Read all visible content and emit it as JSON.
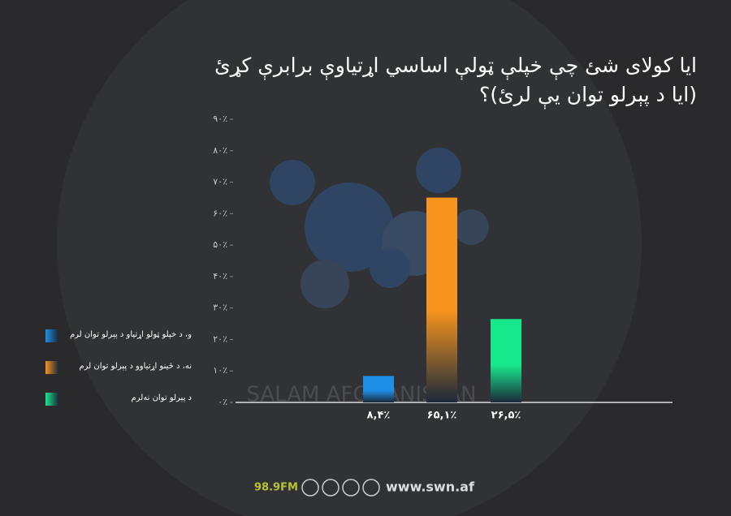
{
  "chart_data": {
    "type": "bar",
    "title": [
      "ایا کولای شئ چې خپلې ټولې اساسي اړتیاوې برابرې کړئ",
      "(ایا د پېرلو توان یې لرئ)؟"
    ],
    "categories": [
      "و، د خپلو ټولو اړتیاو د پېرلو توان لرم",
      "نه، د ځینو اړتیاوو د پېرلو توان لرم",
      "د پېرلو توان نه‌لرم"
    ],
    "values": [
      8.4,
      65.1,
      26.5
    ],
    "value_labels": [
      "۸,۴٪",
      "۶۵,۱٪",
      "۲۶,۵٪"
    ],
    "colors": [
      "#1e8fe6",
      "#f7941d",
      "#18e88c"
    ],
    "ylim": [
      0,
      90
    ],
    "yticks": [
      {
        "value": 0,
        "label": "۰٪"
      },
      {
        "value": 10,
        "label": "۱۰٪"
      },
      {
        "value": 20,
        "label": "۲۰٪"
      },
      {
        "value": 30,
        "label": "۳۰٪"
      },
      {
        "value": 40,
        "label": "۴۰٪"
      },
      {
        "value": 50,
        "label": "۵۰٪"
      },
      {
        "value": 60,
        "label": "۶۰٪"
      },
      {
        "value": 70,
        "label": "۷۰٪"
      },
      {
        "value": 80,
        "label": "۸۰٪"
      },
      {
        "value": 90,
        "label": "۹۰٪"
      }
    ],
    "legend": "left",
    "watermark": "SALAM AFGHANISTAN"
  },
  "footer": {
    "frequency": "98.9FM",
    "website": "www.swn.af"
  }
}
